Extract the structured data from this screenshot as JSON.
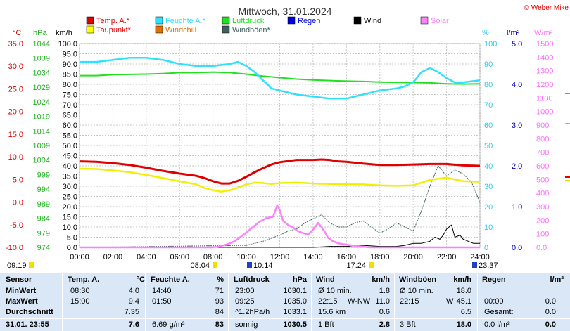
{
  "chart_data": {
    "type": "line",
    "title": "Mittwoch, 31.01.2024",
    "copyright": "© Weber Mike",
    "legend": [
      {
        "label": "Temp. A.*",
        "color": "#e00000"
      },
      {
        "label": "Feuchte A.*",
        "color": "#30e0ff"
      },
      {
        "label": "Luftdruck",
        "color": "#20e020"
      },
      {
        "label": "Regen",
        "color": "#0000e0"
      },
      {
        "label": "Wind",
        "color": "#000000"
      },
      {
        "label": "Solar",
        "color": "#ff80ff"
      },
      {
        "label": "Taupunkt*",
        "color": "#ffff00"
      },
      {
        "label": "Windchill",
        "color": "#e07000"
      },
      {
        "label": "Windböen*",
        "color": "#406060"
      }
    ],
    "axes": {
      "temp": {
        "unit": "°C",
        "color": "#e00000",
        "ticks": [
          "35.0",
          "30.0",
          "25.0",
          "20.0",
          "15.0",
          "10.0",
          "5.0",
          "0.0",
          "-5.0",
          "-10.0"
        ],
        "range": [
          -10,
          35
        ]
      },
      "pressure": {
        "unit": "hPa",
        "color": "#20c020",
        "ticks": [
          "1044",
          "1039",
          "1034",
          "1029",
          "1024",
          "1019",
          "1014",
          "1009",
          "1004",
          "999",
          "994",
          "989",
          "984",
          "979",
          "974"
        ],
        "range": [
          974,
          1044
        ]
      },
      "wind": {
        "unit": "km/h",
        "color": "#000000",
        "ticks": [
          "100.0",
          "95.0",
          "90.0",
          "85.0",
          "80.0",
          "75.0",
          "70.0",
          "65.0",
          "60.0",
          "55.0",
          "50.0",
          "45.0",
          "40.0",
          "35.0",
          "30.0",
          "25.0",
          "20.0",
          "15.0",
          "10.0",
          "5.0",
          "0.0"
        ],
        "range": [
          0,
          100
        ]
      },
      "humidity": {
        "unit": "%",
        "color": "#30d0ff",
        "ticks": [
          "100",
          "90",
          "80",
          "70",
          "60",
          "50",
          "40",
          "30",
          "20",
          "10",
          "0"
        ],
        "range": [
          0,
          100
        ]
      },
      "rain": {
        "unit": "l/m²",
        "color": "#0000c0",
        "ticks": [
          "5.0",
          "4.0",
          "3.0",
          "2.0",
          "1.0",
          "0.0"
        ],
        "range": [
          0,
          5
        ]
      },
      "solar": {
        "unit": "W/m²",
        "color": "#ff70ff",
        "ticks": [
          "1500",
          "1400",
          "1300",
          "1200",
          "1100",
          "1000",
          "900",
          "800",
          "700",
          "600",
          "500",
          "400",
          "300",
          "200",
          "100",
          "0.0"
        ],
        "range": [
          0,
          1500
        ]
      },
      "x": {
        "ticks": [
          "00:00",
          "02:00",
          "04:00",
          "06:00",
          "08:00",
          "10:00",
          "12:00",
          "14:00",
          "16:00",
          "18:00",
          "20:00",
          "22:00",
          "24:00"
        ],
        "range_hours": [
          0,
          24
        ]
      }
    },
    "sun_markers": {
      "left": "09:19",
      "sunrise": "08:04",
      "solar_noon": "10:14",
      "sunset": "17:24",
      "right": "23:37"
    },
    "series": [
      {
        "name": "Temp. A.*",
        "x": [
          0,
          1,
          2,
          3,
          4,
          5,
          6,
          7,
          7.5,
          8,
          8.5,
          9,
          9.5,
          10,
          10.5,
          11,
          11.5,
          12,
          13,
          14,
          14.5,
          15,
          15.5,
          16,
          17,
          18,
          19,
          20,
          21,
          22,
          23,
          24
        ],
        "y": [
          9.0,
          8.9,
          8.6,
          8.2,
          7.6,
          6.9,
          6.3,
          5.8,
          5.3,
          4.6,
          4.1,
          4.1,
          4.7,
          5.6,
          6.6,
          7.5,
          8.3,
          8.8,
          9.3,
          9.3,
          9.4,
          9.3,
          9.0,
          8.9,
          8.5,
          8.2,
          8.2,
          8.3,
          8.4,
          8.4,
          8.1,
          8.0
        ]
      },
      {
        "name": "Taupunkt*",
        "x": [
          0,
          1,
          2,
          3,
          4,
          5,
          6,
          7,
          7.5,
          8,
          8.5,
          9,
          9.5,
          10,
          10.5,
          11,
          11.5,
          12,
          13,
          14,
          15,
          16,
          17,
          18,
          19,
          20,
          21,
          22,
          23,
          24
        ],
        "y": [
          7.4,
          7.3,
          7.0,
          6.6,
          6.0,
          5.3,
          4.6,
          3.9,
          3.1,
          2.6,
          2.3,
          2.6,
          3.2,
          3.9,
          4.3,
          4.2,
          4.0,
          4.2,
          4.3,
          4.1,
          4.0,
          3.9,
          3.9,
          3.7,
          3.6,
          3.7,
          4.9,
          5.4,
          4.6,
          4.5
        ]
      },
      {
        "name": "Luftdruck",
        "x": [
          0,
          1,
          2,
          3,
          4,
          5,
          6,
          7,
          8,
          9,
          10,
          11,
          12,
          13,
          14,
          15,
          16,
          17,
          18,
          19,
          20,
          21,
          22,
          23,
          24
        ],
        "y": [
          1033.0,
          1033.0,
          1033.3,
          1033.4,
          1033.5,
          1033.7,
          1034.0,
          1034.0,
          1034.2,
          1034.0,
          1033.5,
          1032.8,
          1032.3,
          1031.8,
          1031.5,
          1031.3,
          1031.1,
          1031.0,
          1030.8,
          1030.7,
          1030.6,
          1030.5,
          1030.2,
          1030.1,
          1030.2
        ]
      },
      {
        "name": "Feuchte A.*",
        "x": [
          0,
          1,
          2,
          3,
          4,
          5,
          6,
          7,
          8,
          9,
          9.5,
          10,
          10.5,
          11,
          11.5,
          12,
          13,
          14,
          15,
          16,
          17,
          18,
          19,
          19.5,
          20,
          20.5,
          21,
          21.5,
          22,
          22.5,
          23,
          24
        ],
        "y": [
          91,
          91,
          92,
          93,
          93,
          92,
          90,
          89,
          89,
          90,
          91,
          89,
          86,
          82,
          78,
          77,
          75,
          74,
          73,
          73,
          75,
          77,
          78,
          79,
          81,
          86,
          88,
          86,
          83,
          81,
          81,
          82
        ]
      },
      {
        "name": "Solar",
        "x": [
          0,
          7.9,
          8.3,
          8.8,
          9.3,
          9.8,
          10.3,
          10.8,
          11.2,
          11.6,
          11.85,
          12,
          12.2,
          12.5,
          12.8,
          13.1,
          13.4,
          13.7,
          14.0,
          14.3,
          14.5,
          14.7,
          14.9,
          15.2,
          15.5,
          16,
          16.5,
          17,
          17.4,
          24
        ],
        "y": [
          0,
          0,
          5,
          20,
          45,
          90,
          140,
          190,
          215,
          225,
          310,
          275,
          195,
          165,
          145,
          120,
          105,
          95,
          130,
          180,
          150,
          115,
          70,
          45,
          30,
          20,
          12,
          5,
          0,
          0
        ]
      },
      {
        "name": "Wind",
        "x": [
          0,
          14,
          15,
          16,
          17,
          18,
          19,
          19.5,
          20,
          20.5,
          21,
          21.3,
          21.6,
          21.8,
          22,
          22.3,
          22.5,
          22.8,
          23,
          23.3,
          23.6,
          24
        ],
        "y": [
          0,
          0,
          0.5,
          0.5,
          1,
          0.5,
          0.5,
          1,
          2,
          2,
          3,
          5,
          4,
          6,
          9,
          11,
          5,
          6,
          4,
          3,
          2,
          2
        ]
      },
      {
        "name": "Windböen*",
        "x": [
          0,
          10,
          11,
          12,
          12.5,
          13,
          13.5,
          14,
          14.5,
          15,
          15.5,
          16,
          16.5,
          17,
          17.5,
          18,
          18.5,
          19,
          19.5,
          20,
          20.5,
          21,
          21.5,
          22,
          22.5,
          23,
          23.5,
          24
        ],
        "y": [
          0,
          1,
          3,
          6,
          8,
          9,
          12,
          14,
          16,
          12,
          10,
          10,
          12,
          13,
          10,
          7,
          9,
          12,
          10,
          8,
          18,
          30,
          40,
          35,
          38,
          36,
          32,
          22
        ]
      }
    ]
  },
  "table": {
    "headers": [
      "Sensor",
      "Temp. A.",
      "°C",
      "Feuchte A.",
      "%",
      "Luftdruck",
      "hPa",
      "Wind",
      "km/h",
      "Windböen",
      "km/h",
      "Regen",
      "l/m²"
    ],
    "rows": [
      {
        "label": "MinWert",
        "temp_time": "08:30",
        "temp_val": "4.0",
        "hum_time": "14:40",
        "hum_val": "71",
        "pres_time": "23:00",
        "pres_val": "1030.1",
        "wind_a": "Ø 10 min.",
        "wind_b": "",
        "wind_val": "1.8",
        "gust_a": "Ø 10 min.",
        "gust_b": "",
        "gust_val": "18.0",
        "rain_a": "",
        "rain_val": ""
      },
      {
        "label": "MaxWert",
        "temp_time": "15:00",
        "temp_val": "9.4",
        "hum_time": "01:50",
        "hum_val": "93",
        "pres_time": "09:25",
        "pres_val": "1035.0",
        "wind_a": "22:15",
        "wind_b": "W-NW",
        "wind_val": "11.0",
        "gust_a": "22:15",
        "gust_b": "W",
        "gust_val": "45.1",
        "rain_a": "00:00",
        "rain_val": "0.0"
      },
      {
        "label": "Durchschnitt",
        "temp_time": "",
        "temp_val": "7.35",
        "hum_time": "",
        "hum_val": "84",
        "pres_time": "^1.2hPa/h",
        "pres_val": "1033.1",
        "wind_a": "15.6 km",
        "wind_b": "",
        "wind_val": "0.6",
        "gust_a": "",
        "gust_b": "",
        "gust_val": "6.5",
        "rain_a": "Gesamt:",
        "rain_val": "0.0"
      },
      {
        "label": "31.01. 23:55",
        "temp_time": "",
        "temp_val": "7.6",
        "hum_time": "6.69 g/m³",
        "hum_val": "83",
        "pres_time": "sonnig",
        "pres_val": "1030.5",
        "wind_a": "1 Bft",
        "wind_b": "",
        "wind_val": "2.8",
        "gust_a": "3 Bft",
        "gust_b": "",
        "gust_val": "18.0",
        "rain_a": "0.0 l/m²",
        "rain_val": "0.0"
      }
    ]
  }
}
